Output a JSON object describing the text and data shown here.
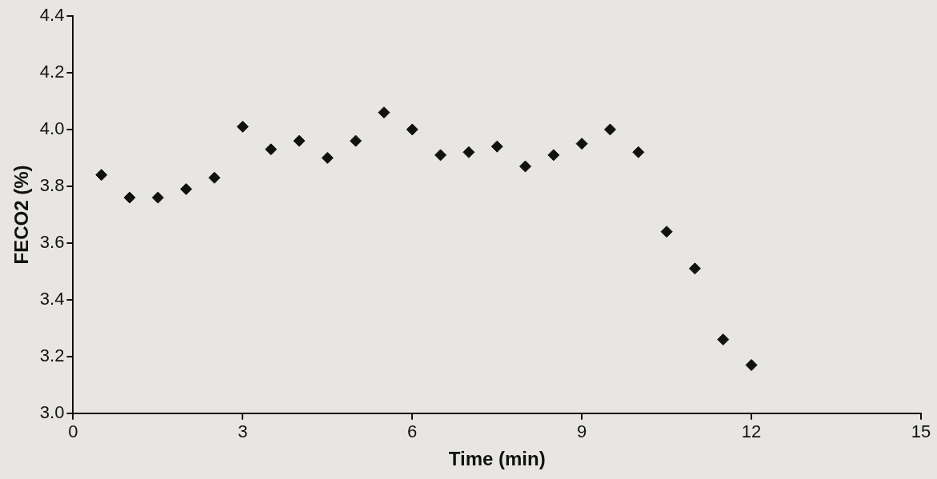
{
  "chart_data": {
    "type": "scatter",
    "xlabel": "Time (min)",
    "ylabel": "FECO2 (%)",
    "x": [
      0.5,
      1,
      1.5,
      2,
      2.5,
      3,
      3.5,
      4,
      4.5,
      5,
      5.5,
      6,
      6.5,
      7,
      7.5,
      8,
      8.5,
      9,
      9.5,
      10,
      10.5,
      11,
      11.5,
      12
    ],
    "series": [
      {
        "color": "#111111",
        "values": [
          3.84,
          3.76,
          3.76,
          3.79,
          3.83,
          4.01,
          3.93,
          3.96,
          3.9,
          3.96,
          4.06,
          4.0,
          3.91,
          3.92,
          3.94,
          3.87,
          3.91,
          3.95,
          4.0,
          3.92,
          3.64,
          3.51,
          3.26,
          3.17
        ]
      }
    ],
    "xlim": [
      0,
      15
    ],
    "xticks": [
      0,
      3,
      6,
      9,
      12,
      15
    ],
    "ylim": [
      3,
      4.4
    ],
    "yticks": [
      {
        "value": 3,
        "label": "3.0"
      },
      {
        "value": 3.2,
        "label": "3.2"
      },
      {
        "value": 3.4,
        "label": "3.4"
      },
      {
        "value": 3.6,
        "label": "3.6"
      },
      {
        "value": 3.8,
        "label": "3.8"
      },
      {
        "value": 4,
        "label": "4.0"
      },
      {
        "value": 4.2,
        "label": "4.2"
      },
      {
        "value": 4.4,
        "label": "4.4"
      }
    ],
    "marker": "diamond",
    "legend": false,
    "grid": false
  }
}
